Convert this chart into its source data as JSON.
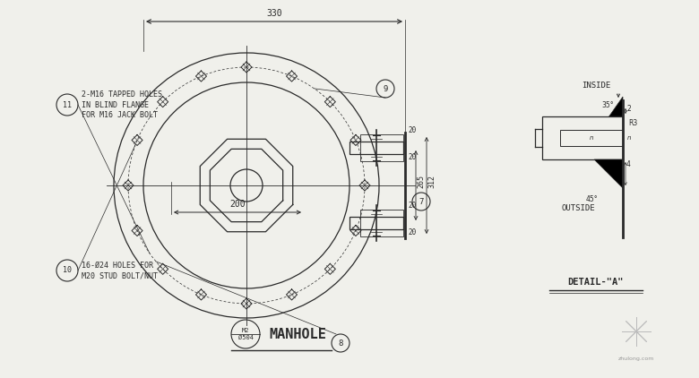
{
  "bg_color": "#f0f0eb",
  "line_color": "#2a2a2a",
  "title": "MANHOLE",
  "num_bolts": 16,
  "dim_330": "330",
  "dim_200": "200",
  "dim_265": "265",
  "dim_312": "312",
  "dim_20": "20",
  "note_10": "16-Ø24 HOLES FOR\nM20 STUD BOLT/NUT",
  "note_11": "2-M16 TAPPED HOLES\nIN BLIND FLANGE\nFOR M16 JACK BOLT",
  "detail_label": "DETAIL-\"A\"",
  "detail_inside": "INSIDE",
  "detail_outside": "OUTSIDE",
  "detail_angle_35": "35°",
  "detail_angle_45": "45°",
  "detail_dim_2": "2",
  "detail_dim_4": "4",
  "detail_dim_r3": "R3"
}
